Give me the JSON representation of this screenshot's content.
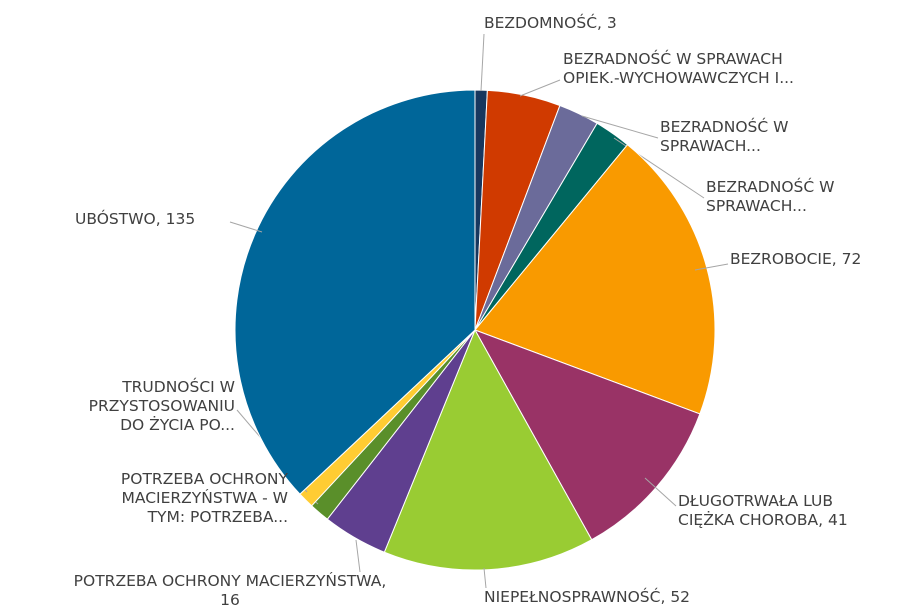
{
  "chart_data": {
    "type": "pie",
    "labels": [
      "BEZDOMNOŚĆ, 3",
      "BEZRADNOŚĆ W SPRAWACH\nOPIEK.-WYCHOWAWCZYCH I...",
      "BEZRADNOŚĆ W\nSPRAWACH...",
      "BEZRADNOŚĆ W\nSPRAWACH...",
      "BEZROBOCIE, 72",
      "DŁUGOTRWAŁA LUB\nCIĘŻKA CHOROBA, 41",
      "NIEPEŁNOSPRAWNOŚĆ, 52",
      "POTRZEBA OCHRONY MACIERZYŃSTWA,\n16",
      "POTRZEBA OCHRONY\nMACIERZYŃSTWA - W\nTYM: POTRZEBA...",
      "TRUDNOŚCI W\nPRZYSTOSOWANIU\nDO ŻYCIA PO...",
      "UBÓSTWO, 135"
    ],
    "values": [
      3,
      18,
      10,
      9,
      72,
      41,
      52,
      16,
      5,
      4,
      135
    ],
    "colors": [
      "#17375e",
      "#d03a00",
      "#6b6b9a",
      "#00665e",
      "#f99a00",
      "#993366",
      "#99cc33",
      "#5f3f8f",
      "#5a8f2a",
      "#ffcc33",
      "#006699"
    ]
  }
}
